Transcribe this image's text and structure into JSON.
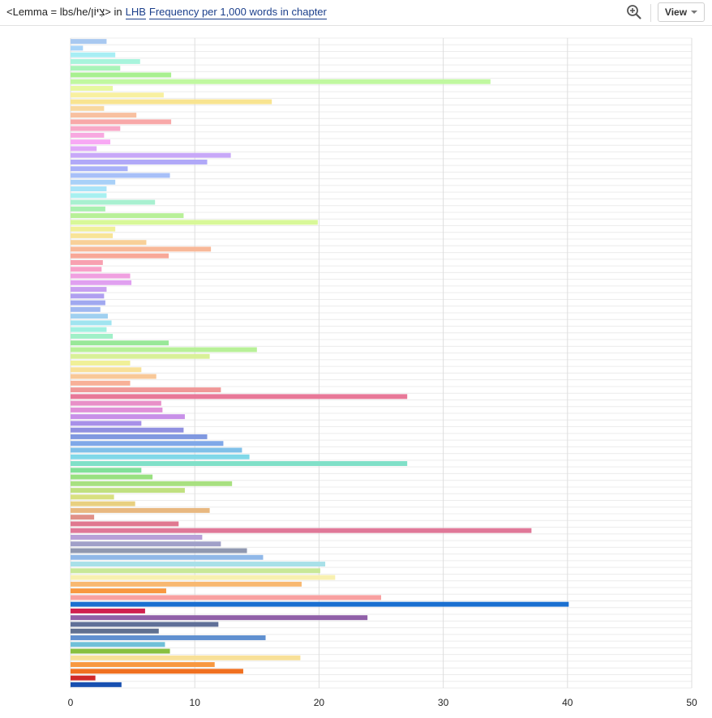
{
  "header": {
    "query_prefix": "<Lemma = lbs/he/",
    "query_hebrew": "צִיּוֹן",
    "query_suffix": "> in",
    "corpus_link": "LHB",
    "measure_link": "Frequency per 1,000 words in chapter",
    "zoom_icon": "zoom-in-icon",
    "view_label": "View",
    "view_icon": "chevron-down-icon"
  },
  "chart_data": {
    "type": "bar",
    "orientation": "horizontal",
    "xlim": [
      0,
      50
    ],
    "x_ticks": [
      0,
      10,
      20,
      30,
      40,
      50
    ],
    "grid": true,
    "values": [
      2.9,
      1.0,
      3.6,
      5.6,
      4.0,
      8.1,
      33.8,
      3.4,
      7.5,
      16.2,
      2.7,
      5.3,
      8.1,
      4.0,
      2.7,
      3.2,
      2.1,
      12.9,
      11.0,
      4.6,
      8.0,
      3.6,
      2.9,
      2.9,
      6.8,
      2.8,
      9.1,
      19.9,
      3.6,
      3.4,
      6.1,
      11.3,
      7.9,
      2.6,
      2.5,
      4.8,
      4.9,
      2.9,
      2.7,
      2.8,
      2.4,
      3.0,
      3.3,
      2.9,
      3.4,
      7.9,
      15.0,
      11.2,
      4.8,
      5.7,
      6.9,
      4.8,
      12.1,
      27.1,
      7.3,
      7.4,
      9.2,
      5.7,
      9.1,
      11.0,
      12.3,
      13.8,
      14.4,
      27.1,
      5.7,
      6.6,
      13.0,
      9.2,
      3.5,
      5.2,
      11.2,
      1.9,
      8.7,
      37.1,
      10.6,
      12.1,
      14.2,
      15.5,
      20.5,
      20.1,
      21.3,
      18.6,
      7.7,
      25.0,
      40.1,
      6.0,
      23.9,
      11.9,
      7.1,
      15.7,
      7.6,
      8.0,
      18.5,
      11.6,
      13.9,
      2.0,
      4.1
    ],
    "colors": [
      "#a8c8f0",
      "#a8d4f8",
      "#a8eef4",
      "#a8f4dc",
      "#a8f4b8",
      "#a8f090",
      "#c0f8a0",
      "#e8f8a0",
      "#f8f0a0",
      "#f8e490",
      "#f8d8a0",
      "#f8c0a0",
      "#f8a8a8",
      "#f8a8c8",
      "#f8a8e0",
      "#f8a8f4",
      "#e0a8f8",
      "#c8a8f8",
      "#b0a8f8",
      "#a8b0f8",
      "#a8c0f8",
      "#a8d0f8",
      "#a8e4f8",
      "#a8f0f0",
      "#a8f0d0",
      "#a8f0b0",
      "#b8f098",
      "#d8f898",
      "#f0f098",
      "#f8e498",
      "#f8d098",
      "#f8b898",
      "#f8a898",
      "#f8a0b0",
      "#f8a0c8",
      "#f0a0e0",
      "#e0a0f0",
      "#c8a0f0",
      "#b0a0f0",
      "#a0a8f0",
      "#a0b8f0",
      "#a0d0f0",
      "#a0e4f0",
      "#a0f0e0",
      "#a0f0c8",
      "#98e898",
      "#b8f098",
      "#d8f098",
      "#f0f098",
      "#f8e098",
      "#f8c898",
      "#f8b098",
      "#f09898",
      "#e87898",
      "#e890c8",
      "#e090d8",
      "#c890e8",
      "#a890e8",
      "#9090e0",
      "#8098e0",
      "#80a8e8",
      "#80c0e8",
      "#80d8e8",
      "#80e0c8",
      "#80e098",
      "#98e080",
      "#a8e080",
      "#c0e080",
      "#d8e080",
      "#e8d080",
      "#e8b880",
      "#e09088",
      "#e07890",
      "#e07898",
      "#b8a0d8",
      "#a0a0c8",
      "#9098b0",
      "#90b8e8",
      "#a8e0e8",
      "#c8e898",
      "#f8f0b0",
      "#f8b870",
      "#f89840",
      "#f8a0a0",
      "#1a6fd0",
      "#d02050",
      "#9060a8",
      "#607098",
      "#607090",
      "#6090d0",
      "#70c0d8",
      "#88c040",
      "#f8e098",
      "#f89840",
      "#f07020",
      "#d02828",
      "#1850b0"
    ]
  }
}
